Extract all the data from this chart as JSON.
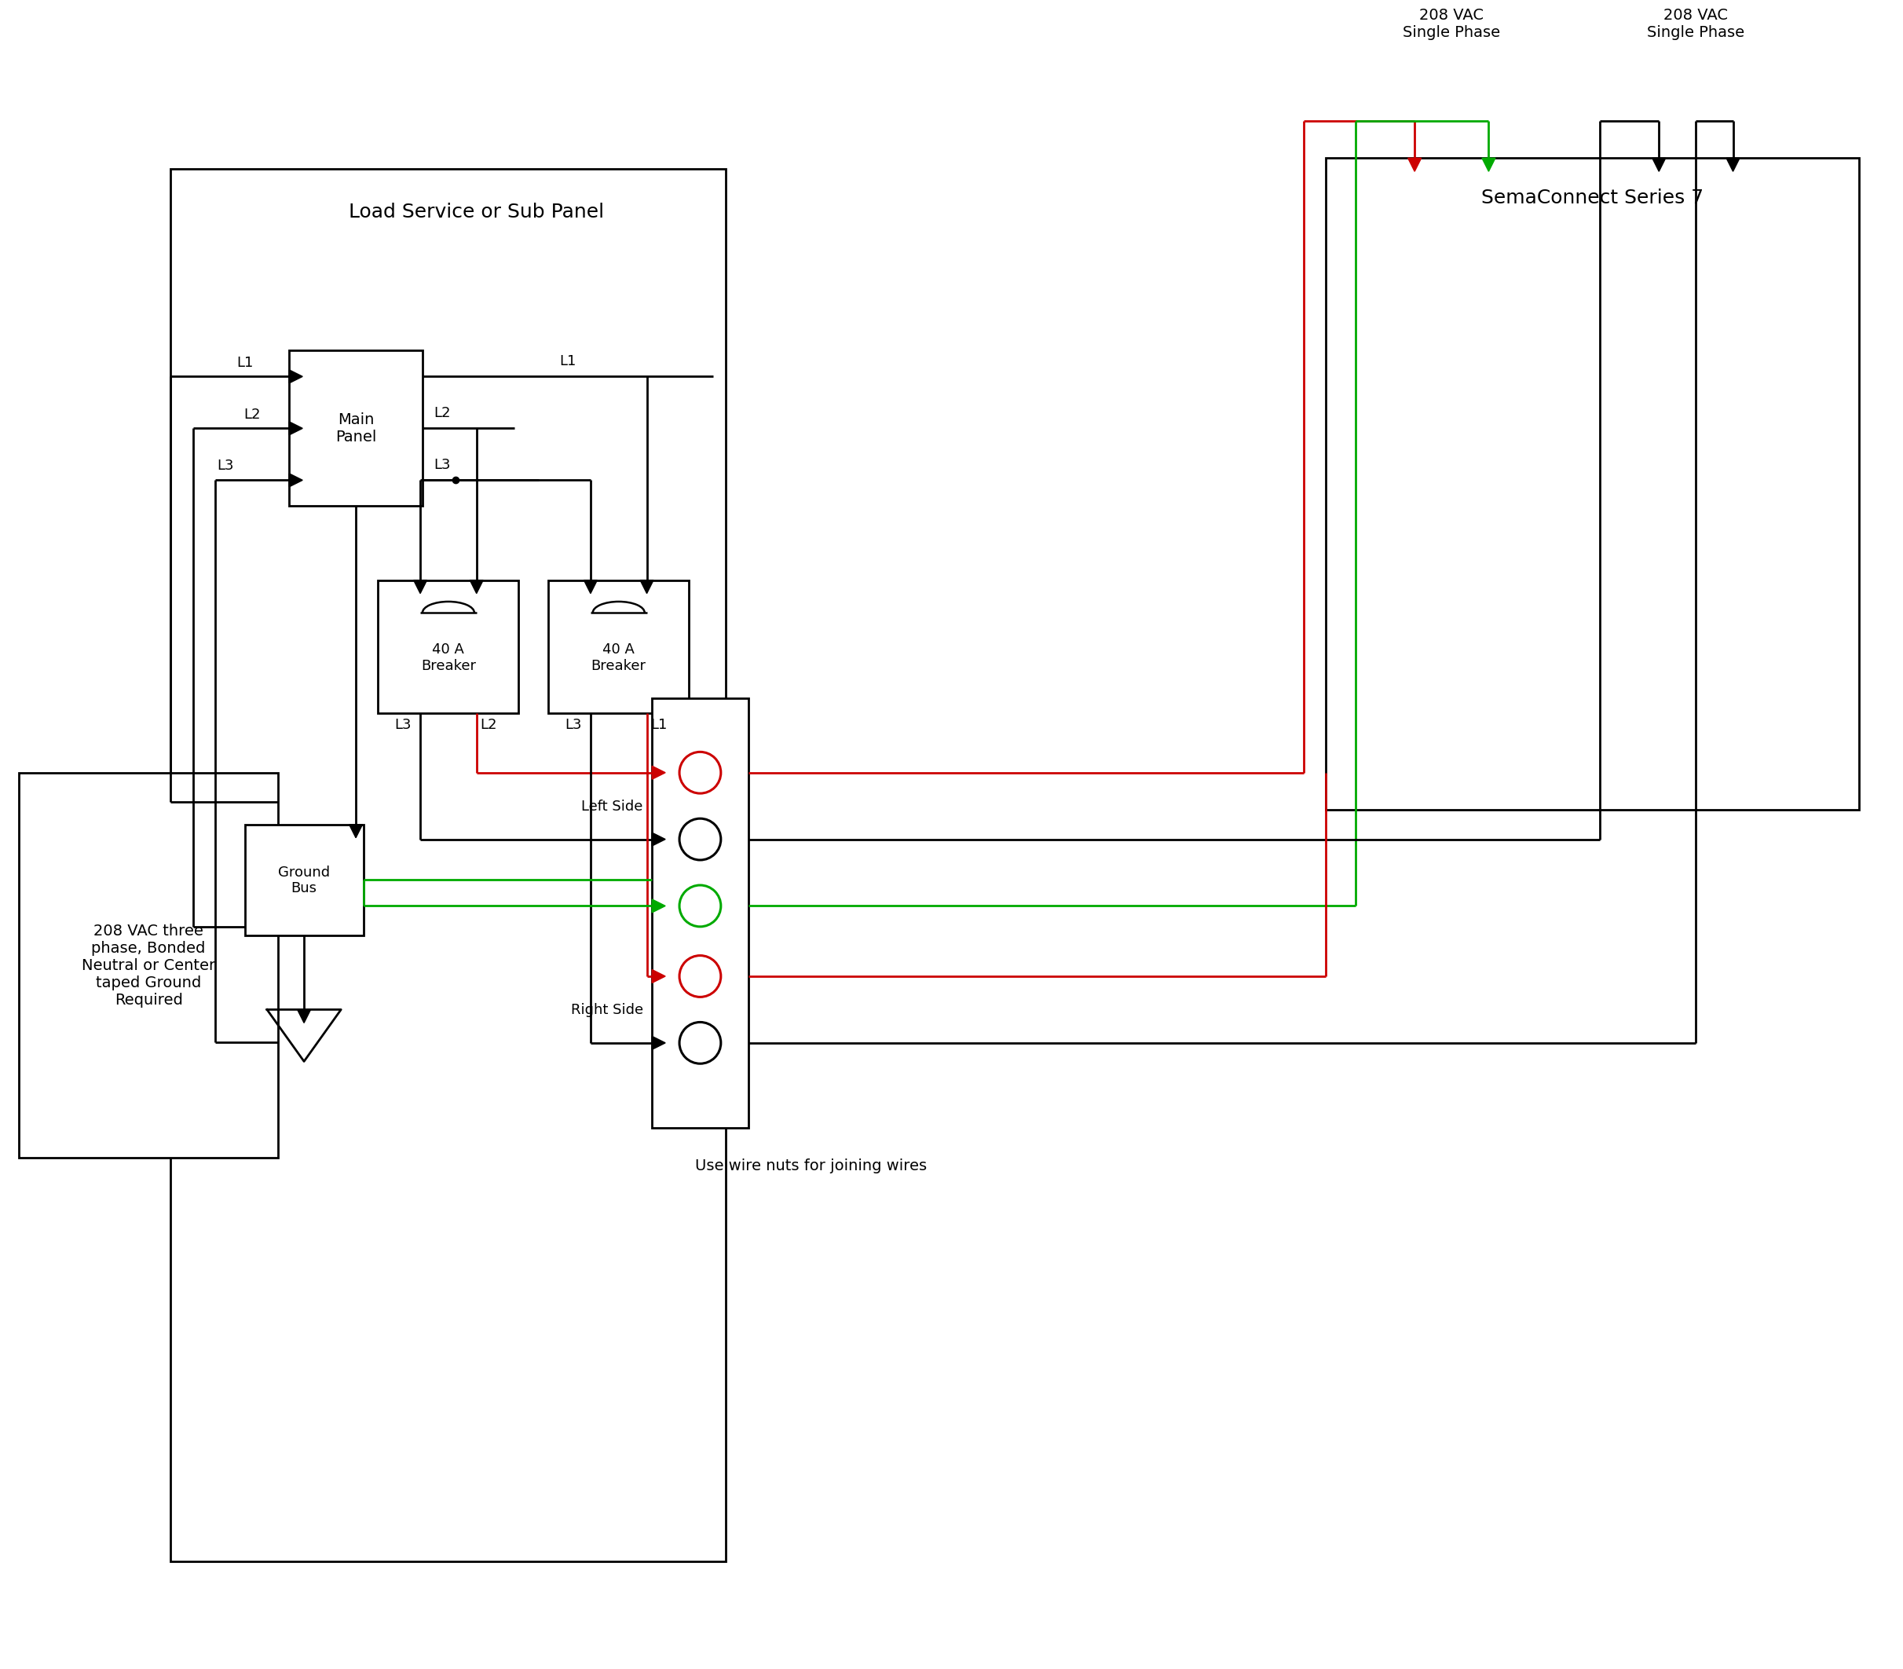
{
  "bg_color": "#ffffff",
  "line_color": "#000000",
  "red_color": "#cc0000",
  "green_color": "#00aa00",
  "fig_width": 25.5,
  "fig_height": 20.98,
  "title": "Load Service or Sub Panel",
  "sema_title": "SemaConnect Series 7",
  "source_label": "208 VAC three\nphase, Bonded\nNeutral or Center\ntaped Ground\nRequired",
  "ground_label": "Ground\nBus",
  "breaker_label": "40 A\nBreaker",
  "left_side_label": "Left Side",
  "right_side_label": "Right Side",
  "wire_nut_label": "Use wire nuts for joining wires",
  "vac_left_label": "208 VAC\nSingle Phase",
  "vac_right_label": "208 VAC\nSingle Phase"
}
